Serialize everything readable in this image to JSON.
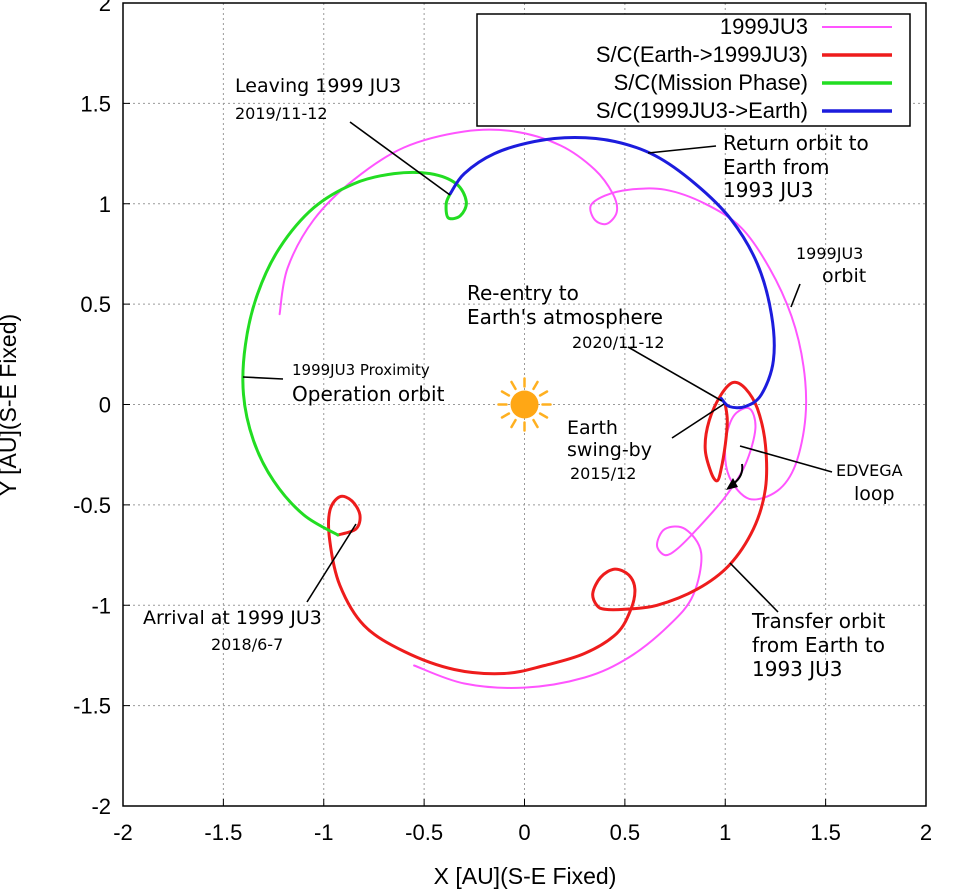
{
  "chart_data": {
    "type": "line",
    "xlabel": "X [AU](S-E Fixed)",
    "ylabel": "Y [AU](S-E Fixed)",
    "xlim": [
      -2,
      2
    ],
    "ylim": [
      -2,
      2
    ],
    "xticks": [
      "-2",
      "-1.5",
      "-1",
      "-0.5",
      "0",
      "0.5",
      "1",
      "1.5",
      "2"
    ],
    "yticks": [
      "-2",
      "-1.5",
      "-1",
      "-0.5",
      "0",
      "0.5",
      "1",
      "1.5",
      "2"
    ],
    "grid": true,
    "legend_position": "top-right",
    "series": [
      {
        "name": "1999JU3",
        "color": "#ff55ff",
        "points": [
          [
            -1.22,
            0.45
          ],
          [
            -1.18,
            0.68
          ],
          [
            -1.05,
            0.92
          ],
          [
            -0.85,
            1.12
          ],
          [
            -0.6,
            1.28
          ],
          [
            -0.3,
            1.36
          ],
          [
            -0.05,
            1.36
          ],
          [
            0.18,
            1.29
          ],
          [
            0.35,
            1.17
          ],
          [
            0.44,
            1.05
          ],
          [
            0.46,
            0.96
          ],
          [
            0.41,
            0.9
          ],
          [
            0.35,
            0.92
          ],
          [
            0.33,
            0.99
          ],
          [
            0.4,
            1.04
          ],
          [
            0.52,
            1.07
          ],
          [
            0.7,
            1.07
          ],
          [
            0.9,
            1.0
          ],
          [
            1.08,
            0.88
          ],
          [
            1.22,
            0.68
          ],
          [
            1.33,
            0.44
          ],
          [
            1.39,
            0.19
          ],
          [
            1.4,
            -0.06
          ],
          [
            1.35,
            -0.3
          ],
          [
            1.26,
            -0.43
          ],
          [
            1.12,
            -0.47
          ],
          [
            1.02,
            -0.36
          ],
          [
            1.0,
            -0.2
          ],
          [
            1.04,
            -0.06
          ],
          [
            1.12,
            -0.02
          ],
          [
            1.15,
            -0.12
          ],
          [
            1.1,
            -0.3
          ],
          [
            1.0,
            -0.46
          ],
          [
            0.86,
            -0.62
          ],
          [
            0.76,
            -0.72
          ],
          [
            0.7,
            -0.75
          ],
          [
            0.66,
            -0.7
          ],
          [
            0.7,
            -0.62
          ],
          [
            0.8,
            -0.62
          ],
          [
            0.88,
            -0.74
          ],
          [
            0.84,
            -0.95
          ],
          [
            0.72,
            -1.1
          ],
          [
            0.52,
            -1.26
          ],
          [
            0.3,
            -1.36
          ],
          [
            0.0,
            -1.41
          ],
          [
            -0.3,
            -1.39
          ],
          [
            -0.55,
            -1.3
          ]
        ]
      },
      {
        "name": "S/C(Earth->1999JU3)",
        "color": "#ee1c1c",
        "points": [
          [
            1.0,
            0.0
          ],
          [
            1.01,
            -0.08
          ],
          [
            1.0,
            -0.2
          ],
          [
            0.98,
            -0.32
          ],
          [
            0.96,
            -0.38
          ],
          [
            0.93,
            -0.34
          ],
          [
            0.9,
            -0.22
          ],
          [
            0.92,
            -0.08
          ],
          [
            0.98,
            0.05
          ],
          [
            1.04,
            0.11
          ],
          [
            1.1,
            0.08
          ],
          [
            1.16,
            -0.02
          ],
          [
            1.2,
            -0.2
          ],
          [
            1.2,
            -0.42
          ],
          [
            1.14,
            -0.62
          ],
          [
            1.02,
            -0.8
          ],
          [
            0.86,
            -0.92
          ],
          [
            0.66,
            -1.0
          ],
          [
            0.5,
            -1.02
          ],
          [
            0.4,
            -1.02
          ],
          [
            0.36,
            -1.0
          ],
          [
            0.34,
            -0.94
          ],
          [
            0.38,
            -0.86
          ],
          [
            0.45,
            -0.82
          ],
          [
            0.52,
            -0.85
          ],
          [
            0.55,
            -0.92
          ],
          [
            0.53,
            -1.02
          ],
          [
            0.46,
            -1.14
          ],
          [
            0.3,
            -1.24
          ],
          [
            0.1,
            -1.3
          ],
          [
            -0.1,
            -1.34
          ],
          [
            -0.35,
            -1.32
          ],
          [
            -0.6,
            -1.23
          ],
          [
            -0.8,
            -1.1
          ],
          [
            -0.92,
            -0.9
          ],
          [
            -0.97,
            -0.68
          ],
          [
            -0.97,
            -0.53
          ],
          [
            -0.92,
            -0.46
          ],
          [
            -0.86,
            -0.48
          ],
          [
            -0.82,
            -0.55
          ],
          [
            -0.84,
            -0.62
          ],
          [
            -0.93,
            -0.65
          ]
        ]
      },
      {
        "name": "S/C(Mission Phase)",
        "color": "#22dd22",
        "points": [
          [
            -0.93,
            -0.65
          ],
          [
            -1.1,
            -0.55
          ],
          [
            -1.25,
            -0.38
          ],
          [
            -1.35,
            -0.18
          ],
          [
            -1.4,
            0.05
          ],
          [
            -1.39,
            0.3
          ],
          [
            -1.33,
            0.55
          ],
          [
            -1.22,
            0.78
          ],
          [
            -1.05,
            0.98
          ],
          [
            -0.85,
            1.1
          ],
          [
            -0.65,
            1.15
          ],
          [
            -0.47,
            1.15
          ],
          [
            -0.34,
            1.1
          ],
          [
            -0.29,
            1.01
          ],
          [
            -0.32,
            0.94
          ],
          [
            -0.38,
            0.93
          ],
          [
            -0.39,
            1.0
          ],
          [
            -0.37,
            1.05
          ]
        ]
      },
      {
        "name": "S/C(1999JU3->Earth)",
        "color": "#1c1cdd",
        "points": [
          [
            -0.37,
            1.05
          ],
          [
            -0.3,
            1.15
          ],
          [
            -0.15,
            1.25
          ],
          [
            0.05,
            1.31
          ],
          [
            0.25,
            1.33
          ],
          [
            0.45,
            1.31
          ],
          [
            0.65,
            1.24
          ],
          [
            0.85,
            1.1
          ],
          [
            1.03,
            0.92
          ],
          [
            1.16,
            0.7
          ],
          [
            1.23,
            0.45
          ],
          [
            1.24,
            0.22
          ],
          [
            1.18,
            0.05
          ],
          [
            1.1,
            -0.01
          ],
          [
            1.02,
            -0.01
          ],
          [
            0.98,
            0.03
          ]
        ]
      }
    ],
    "annotations": [
      {
        "lines": [
          "Leaving 1999 JU3",
          "2019/11-12"
        ],
        "target": [
          -0.37,
          1.05
        ]
      },
      {
        "lines": [
          "Return orbit to",
          "Earth from",
          "1993 JU3"
        ],
        "target": [
          0.6,
          1.25
        ]
      },
      {
        "lines": [
          "1999JU3",
          "orbit"
        ],
        "target": [
          1.33,
          0.48
        ]
      },
      {
        "lines": [
          "Re-entry to",
          "Earth's atmosphere",
          "2020/11-12"
        ],
        "target": [
          0.99,
          0.02
        ]
      },
      {
        "lines": [
          "1999JU3 Proximity",
          "Operation orbit"
        ],
        "target": [
          -1.4,
          0.13
        ]
      },
      {
        "lines": [
          "Earth",
          "swing-by",
          "2015/12"
        ],
        "target": [
          1.0,
          0.0
        ]
      },
      {
        "lines": [
          "EDVEGA",
          "loop"
        ],
        "target": [
          1.01,
          -0.2
        ]
      },
      {
        "lines": [
          "Arrival at 1999 JU3",
          "2018/6-7"
        ],
        "target": [
          -0.86,
          -0.6
        ]
      },
      {
        "lines": [
          "Transfer orbit",
          "from Earth to",
          "1993 JU3"
        ],
        "target": [
          1.0,
          -0.8
        ]
      }
    ]
  }
}
